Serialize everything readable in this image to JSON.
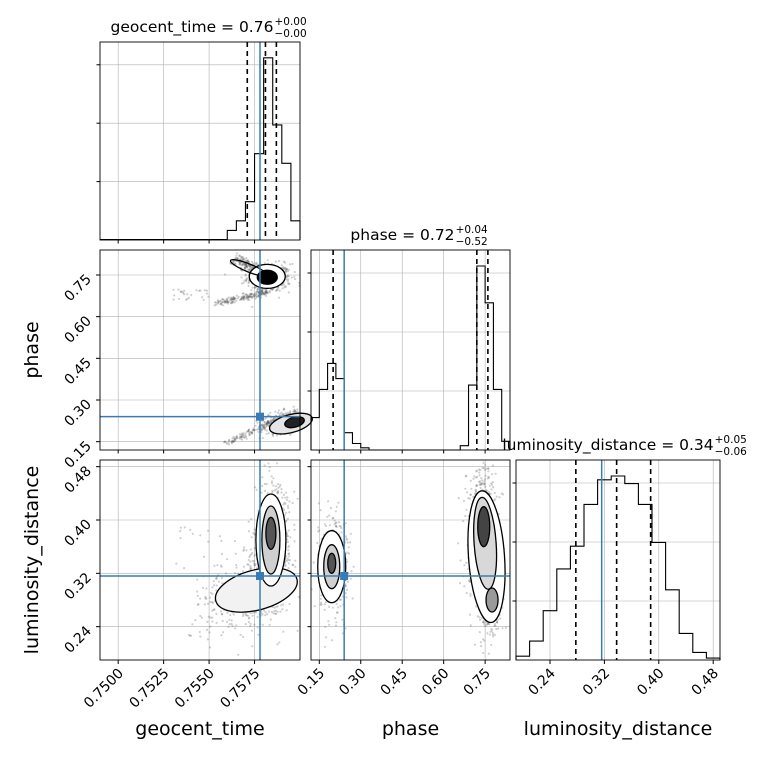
{
  "chart_data": {
    "type": "scatter",
    "figure": "corner-plot",
    "parameters": [
      "geocent_time",
      "phase",
      "luminosity_distance"
    ],
    "truth": {
      "geocent_time": 0.7578,
      "phase": 0.24,
      "luminosity_distance": 0.316,
      "color": "#3a7bb5"
    },
    "colors": {
      "contour": "#000000",
      "truth": "#3a7bb5",
      "grid": "#b0b0b0",
      "samples": "#555555"
    },
    "titles": [
      {
        "param": "geocent_time",
        "label": "geocent_time",
        "median": "0.76",
        "upper": "+0.00",
        "lower": "−0.00"
      },
      {
        "param": "phase",
        "label": "phase",
        "median": "0.72",
        "upper": "+0.04",
        "lower": "−0.52"
      },
      {
        "param": "luminosity_distance",
        "label": "luminosity_distance",
        "median": "0.34",
        "upper": "+0.05",
        "lower": "−0.06"
      }
    ],
    "axes": {
      "geocent_time": {
        "xlabel": "geocent_time",
        "range": [
          0.749,
          0.76
        ],
        "ticks": [
          0.75,
          0.7525,
          0.755,
          0.7575
        ],
        "tick_labels": [
          "0.7500",
          "0.7525",
          "0.7550",
          "0.7575"
        ]
      },
      "phase": {
        "xlabel": "phase",
        "ylabel": "phase",
        "range": [
          0.12,
          0.84
        ],
        "ticks": [
          0.15,
          0.3,
          0.45,
          0.6,
          0.75
        ],
        "tick_labels": [
          "0.15",
          "0.30",
          "0.45",
          "0.60",
          "0.75"
        ]
      },
      "luminosity_distance": {
        "xlabel": "luminosity_distance",
        "ylabel": "luminosity_distance",
        "range": [
          0.19,
          0.49
        ],
        "ticks": [
          0.24,
          0.32,
          0.4,
          0.48
        ],
        "tick_labels": [
          "0.24",
          "0.32",
          "0.40",
          "0.48"
        ]
      }
    },
    "histograms": {
      "geocent_time": {
        "edges": [
          0.756,
          0.7565,
          0.757,
          0.7575,
          0.758,
          0.7585,
          0.759,
          0.7595,
          0.76
        ],
        "counts": [
          5,
          10,
          20,
          45,
          95,
          60,
          40,
          10
        ],
        "quantiles": [
          0.7571,
          0.7581,
          0.7587
        ]
      },
      "phase": {
        "edges": [
          0.12,
          0.15,
          0.18,
          0.21,
          0.24,
          0.27,
          0.3,
          0.33,
          0.36,
          0.39,
          0.42,
          0.45,
          0.48,
          0.51,
          0.54,
          0.57,
          0.6,
          0.63,
          0.66,
          0.69,
          0.72,
          0.75,
          0.78,
          0.81,
          0.84
        ],
        "counts": [
          15,
          28,
          40,
          33,
          8,
          3,
          1,
          0,
          0,
          0,
          0,
          0,
          0,
          0,
          0,
          0,
          0,
          0,
          2,
          30,
          85,
          68,
          28,
          4
        ],
        "quantiles": [
          0.2,
          0.72,
          0.76
        ]
      },
      "luminosity_distance": {
        "edges": [
          0.19,
          0.21,
          0.23,
          0.25,
          0.27,
          0.29,
          0.31,
          0.33,
          0.35,
          0.37,
          0.39,
          0.41,
          0.43,
          0.45,
          0.47,
          0.49
        ],
        "counts": [
          2,
          10,
          26,
          48,
          60,
          82,
          95,
          97,
          93,
          82,
          62,
          37,
          14,
          4,
          1
        ],
        "quantiles": [
          0.278,
          0.338,
          0.388
        ]
      }
    }
  }
}
